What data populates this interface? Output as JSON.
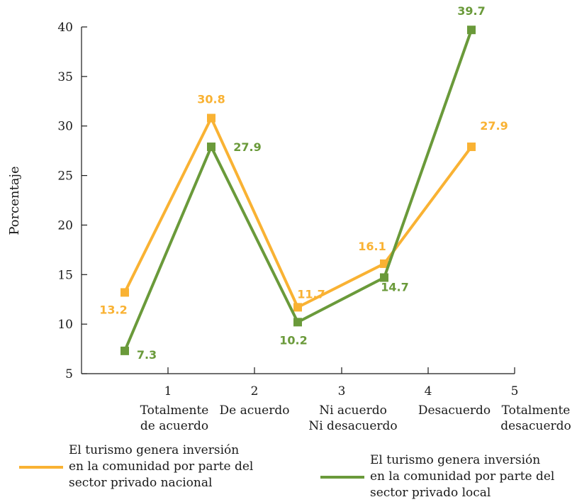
{
  "chart_data": {
    "type": "line",
    "ylabel": "Porcentaje",
    "xlabel": "",
    "ylim": [
      5,
      40
    ],
    "yticks": [
      5,
      10,
      15,
      20,
      25,
      30,
      35,
      40
    ],
    "xticks": [
      "1",
      "2",
      "3",
      "4",
      "5"
    ],
    "categories": [
      "Totalmente\nde acuerdo",
      "De acuerdo",
      "Ni acuerdo\nNi desacuerdo",
      "Desacuerdo",
      "Totalmente\ndesacuerdo"
    ],
    "series": [
      {
        "name": "El turismo genera inversión en la comunidad por parte del sector privado nacional",
        "color": "#f9b233",
        "values": [
          13.2,
          30.8,
          11.7,
          16.1,
          27.9
        ],
        "labels": [
          "13.2",
          "30.8",
          "11.7",
          "16.1",
          "27.9"
        ]
      },
      {
        "name": "El turismo genera inversión en la comunidad por parte del sector privado local",
        "color": "#6a9a3a",
        "values": [
          7.3,
          27.9,
          10.2,
          14.7,
          39.7
        ],
        "labels": [
          "7.3",
          "27.9",
          "10.2",
          "14.7",
          "39.7"
        ]
      }
    ],
    "grid": false,
    "legend": "bottom"
  },
  "legend": {
    "nacional": "El turismo genera inversión\nen la comunidad por parte del\nsector privado nacional",
    "local": "El turismo genera inversión\nen la comunidad por parte del\nsector privado local"
  }
}
